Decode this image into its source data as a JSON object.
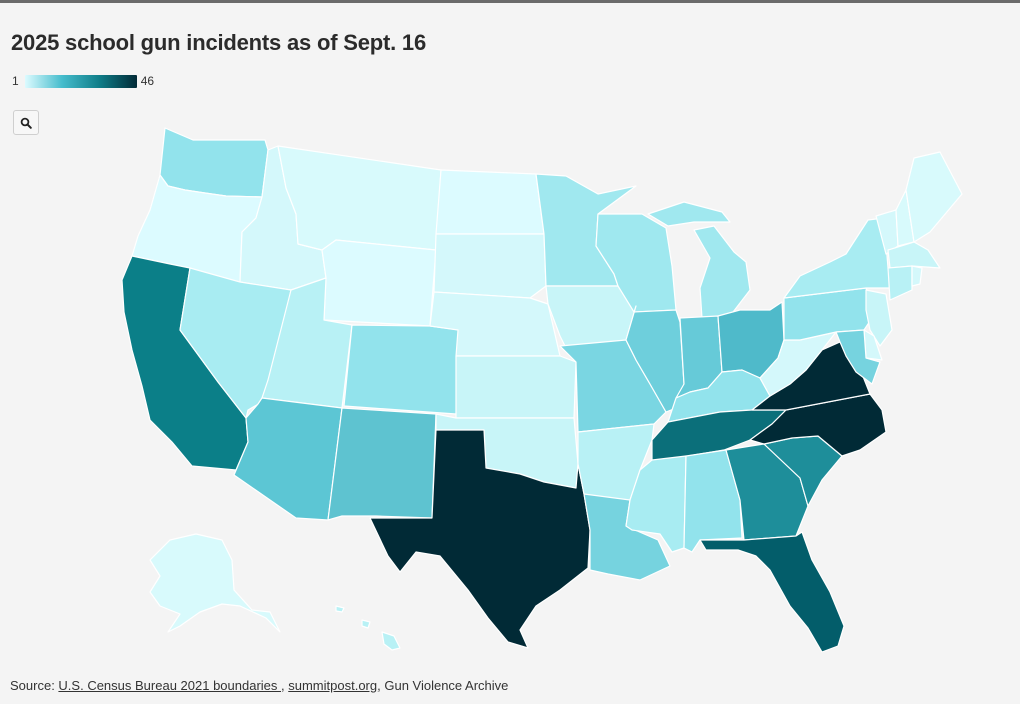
{
  "title": "2025 school gun incidents as of Sept. 16",
  "legend": {
    "min": "1",
    "max": "46",
    "colors": [
      "#dcfbff",
      "#45bccc",
      "#0f7d88",
      "#012a36"
    ]
  },
  "zoom_icon": "search-icon",
  "source": {
    "prefix": "Source: ",
    "link1": "U.S. Census Bureau 2021 boundaries ",
    "sep1": ", ",
    "link2": "summitpost.org",
    "suffix": ", Gun Violence Archive"
  },
  "state_colors": {
    "WA": "#92e3ec",
    "OR": "#dcfbff",
    "CA": "#0b7f88",
    "ID": "#d4f8fb",
    "NV": "#a8ecf2",
    "MT": "#d8fafc",
    "WY": "#dcfbff",
    "UT": "#b8f1f5",
    "AZ": "#5cc6d4",
    "CO": "#92e3ec",
    "NM": "#5ec3d0",
    "ND": "#dcfbff",
    "SD": "#d4f8fb",
    "NE": "#d4f8fb",
    "KS": "#c8f5f8",
    "OK": "#c8f5f8",
    "TX": "#012a36",
    "MN": "#a0e8ef",
    "IA": "#c8f5f8",
    "MO": "#7ad6e2",
    "AR": "#b8f1f5",
    "LA": "#76d3df",
    "WI": "#9fe8ef",
    "IL": "#6ecfdc",
    "MI": "#a0e8ef",
    "IN": "#66cad8",
    "OH": "#4fbaca",
    "KY": "#92e3ec",
    "TN": "#0b6f7a",
    "MS": "#a8ecf2",
    "AL": "#92e3ec",
    "GA": "#1e8e9a",
    "FL": "#035d6a",
    "SC": "#1e8e9a",
    "NC": "#012a36",
    "VA": "#012a36",
    "WV": "#d4f8fb",
    "PA": "#92e3ec",
    "NY": "#a8ecf2",
    "VT": "#d4f8fb",
    "NH": "#d8fafc",
    "ME": "#d8fafc",
    "MA": "#c8f5f8",
    "RI": "#d4f8fb",
    "CT": "#b8f1f5",
    "NJ": "#c8f5f8",
    "DE": "#d4f8fb",
    "MD": "#76d3df",
    "AK": "#d8fafc",
    "HI": "#b8f1f5"
  }
}
